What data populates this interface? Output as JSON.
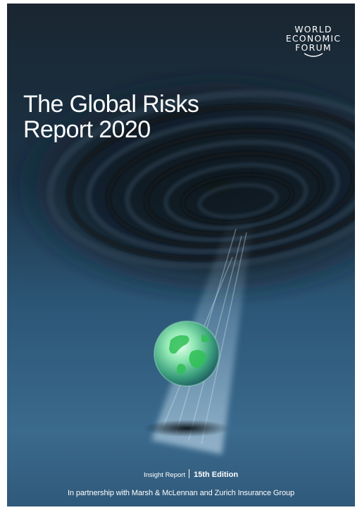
{
  "publisher": {
    "logo_lines": [
      "WORLD",
      "ECONOMIC",
      "FORUM"
    ]
  },
  "cover": {
    "title_lines": [
      "The Global Risks",
      "Report 2020"
    ],
    "series": "Insight Report",
    "edition": "15th Edition",
    "partnership": "In partnership with Marsh & McLennan and Zurich Insurance Group"
  },
  "colors": {
    "background_dark": "#142b3e",
    "background_mid": "#2f5a7a",
    "globe_green": "#3fcf6a",
    "text": "#ffffff"
  }
}
